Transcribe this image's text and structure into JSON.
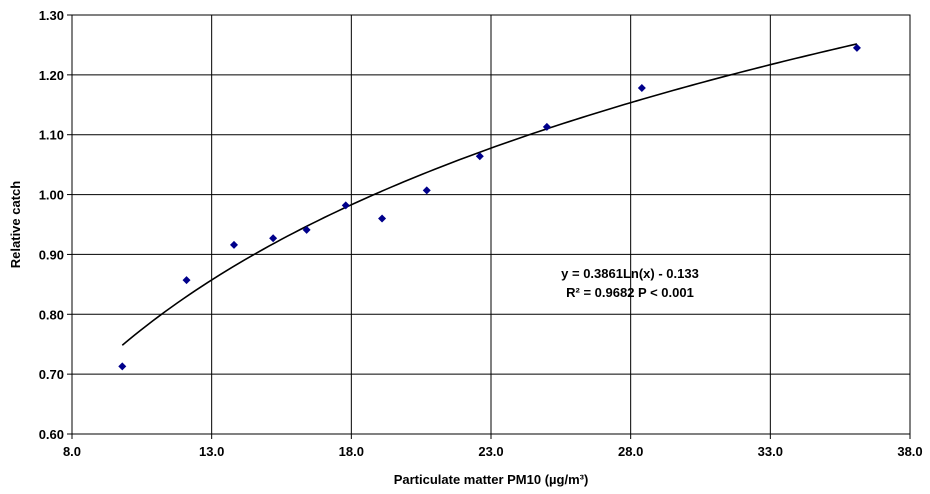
{
  "chart_data": {
    "type": "scatter",
    "title": "",
    "xlabel": "Particulate matter PM10  (µg/m³)",
    "ylabel": "Relative catch",
    "xlim": [
      8.0,
      38.0
    ],
    "ylim": [
      0.6,
      1.3
    ],
    "x_ticks": [
      "8.0",
      "13.0",
      "18.0",
      "23.0",
      "28.0",
      "33.0",
      "38.0"
    ],
    "y_ticks": [
      "0.60",
      "0.70",
      "0.80",
      "0.90",
      "1.00",
      "1.10",
      "1.20",
      "1.30"
    ],
    "grid": true,
    "marker_color": "#00008b",
    "points": [
      {
        "x": 9.8,
        "y": 0.713
      },
      {
        "x": 12.1,
        "y": 0.857
      },
      {
        "x": 13.8,
        "y": 0.916
      },
      {
        "x": 15.2,
        "y": 0.927
      },
      {
        "x": 16.4,
        "y": 0.941
      },
      {
        "x": 17.8,
        "y": 0.982
      },
      {
        "x": 19.1,
        "y": 0.96
      },
      {
        "x": 20.7,
        "y": 1.007
      },
      {
        "x": 22.6,
        "y": 1.064
      },
      {
        "x": 25.0,
        "y": 1.113
      },
      {
        "x": 28.4,
        "y": 1.178
      },
      {
        "x": 36.1,
        "y": 1.245
      }
    ],
    "trendline": {
      "type": "logarithmic",
      "a": 0.3861,
      "b": -0.133,
      "x_from": 9.8,
      "x_to": 36.1,
      "color": "#000000"
    },
    "annotation": {
      "line1": "y = 0.3861Ln(x) - 0.133",
      "line2": "R² = 0.9682 P < 0.001"
    }
  }
}
